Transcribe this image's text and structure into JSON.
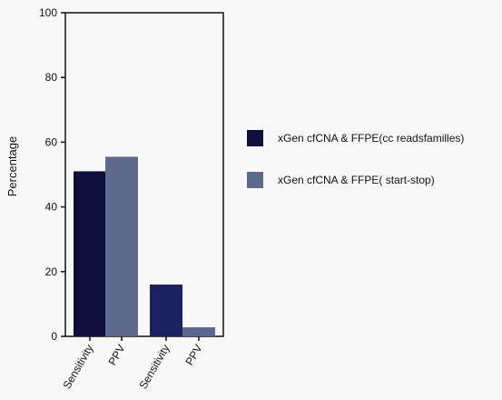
{
  "chart_data": {
    "type": "bar",
    "title": "",
    "xlabel": "",
    "ylabel": "Percentage",
    "ylim": [
      0,
      100
    ],
    "yticks": [
      0,
      20,
      40,
      60,
      80,
      100
    ],
    "grid": false,
    "legend_position": "right",
    "bars": [
      {
        "label": "Sensitivity",
        "value": 51,
        "series": 0
      },
      {
        "label": "PPV",
        "value": 55.5,
        "series": 1
      },
      {
        "label": "Sensitivity",
        "value": 16,
        "series": 2
      },
      {
        "label": "PPV",
        "value": 2.8,
        "series": 3
      }
    ],
    "bar_colors": [
      "#0f0f3d",
      "#5d6a8c",
      "#1b2160",
      "#5a6890"
    ],
    "legend": [
      {
        "label": "xGen cfCNA & FFPE(cc readsfamilles)",
        "color": "#0f0f3d"
      },
      {
        "label": "xGen cfCNA & FFPE( start-stop)",
        "color": "#5d6a8c"
      }
    ]
  }
}
